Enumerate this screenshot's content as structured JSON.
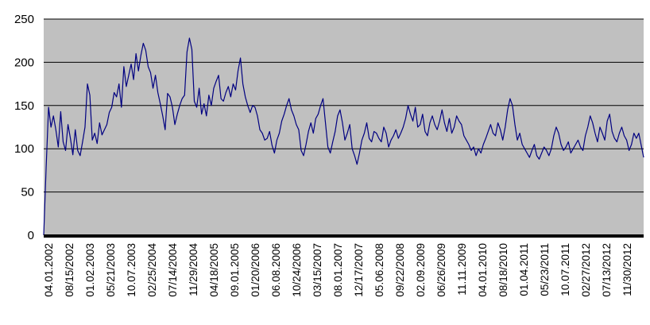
{
  "chart_data": {
    "type": "line",
    "title": "",
    "xlabel": "",
    "ylabel": "",
    "ylim": [
      0,
      250
    ],
    "yticks": [
      "0",
      "50",
      "100",
      "150",
      "200",
      "250"
    ],
    "grid": true,
    "legend": "none",
    "colors": {
      "plot_background": "#c0c0c0",
      "line": "#000080",
      "gridline": "#000000",
      "baseline": "#000000"
    },
    "x_tick_labels": [
      "04.01.2002",
      "08/15/2002",
      "01.02.2003",
      "05/21/2003",
      "10.07.2003",
      "02/25/2004",
      "07/14/2004",
      "11/29/2004",
      "04/18/2005",
      "09.01.2005",
      "01/20/2006",
      "06.08.2006",
      "10/24/2006",
      "03/15/2007",
      "08.01.2007",
      "12/17/2007",
      "05.06.2008",
      "09/22/2008",
      "02.09.2009",
      "06/26/2009",
      "11.11.2009",
      "04.01.2010",
      "08/18/2010",
      "01.04.2011",
      "05/23/2011",
      "10.07.2011",
      "02/27/2012",
      "07/13/2012",
      "11/30/2012"
    ],
    "series": [
      {
        "values": [
          0,
          78,
          148,
          125,
          138,
          122,
          102,
          143,
          108,
          98,
          128,
          112,
          93,
          122,
          98,
          92,
          108,
          125,
          175,
          162,
          110,
          118,
          106,
          130,
          116,
          122,
          128,
          142,
          148,
          165,
          160,
          175,
          148,
          195,
          172,
          185,
          198,
          180,
          210,
          190,
          208,
          222,
          214,
          195,
          188,
          170,
          185,
          165,
          152,
          138,
          122,
          164,
          160,
          148,
          128,
          140,
          150,
          158,
          162,
          212,
          228,
          215,
          155,
          148,
          170,
          140,
          152,
          138,
          162,
          150,
          170,
          178,
          185,
          158,
          155,
          165,
          172,
          160,
          175,
          168,
          190,
          205,
          175,
          160,
          150,
          142,
          150,
          148,
          138,
          122,
          118,
          110,
          112,
          120,
          104,
          95,
          110,
          118,
          132,
          140,
          150,
          158,
          145,
          138,
          128,
          122,
          98,
          92,
          105,
          120,
          130,
          118,
          135,
          140,
          150,
          158,
          130,
          102,
          95,
          108,
          120,
          138,
          145,
          130,
          110,
          118,
          128,
          100,
          92,
          82,
          95,
          110,
          118,
          130,
          112,
          108,
          120,
          118,
          112,
          108,
          125,
          118,
          102,
          110,
          115,
          122,
          112,
          118,
          125,
          135,
          150,
          140,
          132,
          148,
          125,
          128,
          140,
          120,
          115,
          130,
          138,
          128,
          122,
          132,
          145,
          130,
          120,
          135,
          118,
          125,
          138,
          132,
          128,
          115,
          110,
          105,
          98,
          102,
          92,
          100,
          95,
          105,
          112,
          120,
          128,
          118,
          115,
          130,
          122,
          110,
          125,
          145,
          158,
          150,
          128,
          110,
          118,
          105,
          100,
          95,
          90,
          98,
          105,
          92,
          88,
          95,
          102,
          98,
          92,
          100,
          115,
          125,
          118,
          105,
          98,
          102,
          108,
          95,
          100,
          105,
          110,
          102,
          98,
          115,
          125,
          138,
          130,
          118,
          108,
          125,
          118,
          110,
          132,
          140,
          120,
          112,
          108,
          118,
          125,
          115,
          110,
          98,
          105,
          118,
          112,
          118,
          104,
          90
        ]
      }
    ]
  }
}
